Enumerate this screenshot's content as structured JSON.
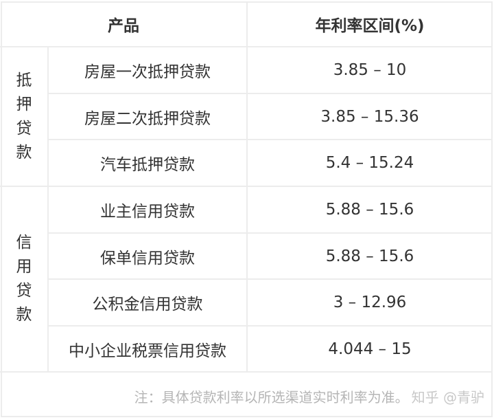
{
  "header": {
    "product": "产品",
    "rate": "年利率区间(%)"
  },
  "groups": [
    {
      "label": [
        "抵",
        "押",
        "贷",
        "款"
      ],
      "rows": [
        {
          "product": "房屋一次抵押贷款",
          "rate": "3.85 – 10"
        },
        {
          "product": "房屋二次抵押贷款",
          "rate": "3.85 – 15.36"
        },
        {
          "product": "汽车抵押贷款",
          "rate": "5.4 – 15.24"
        }
      ]
    },
    {
      "label": [
        "信",
        "用",
        "贷",
        "款"
      ],
      "rows": [
        {
          "product": "业主信用贷款",
          "rate": "5.88 – 15.6"
        },
        {
          "product": "保单信用贷款",
          "rate": "5.88 – 15.6"
        },
        {
          "product": "公积金信用贷款",
          "rate": "3 – 12.96"
        },
        {
          "product": "中小企业税票信用贷款",
          "rate": "4.044 – 15"
        }
      ]
    }
  ],
  "note": "注：具体贷款利率以所选渠道实时利率为准。",
  "watermark": "知乎 @青驴"
}
